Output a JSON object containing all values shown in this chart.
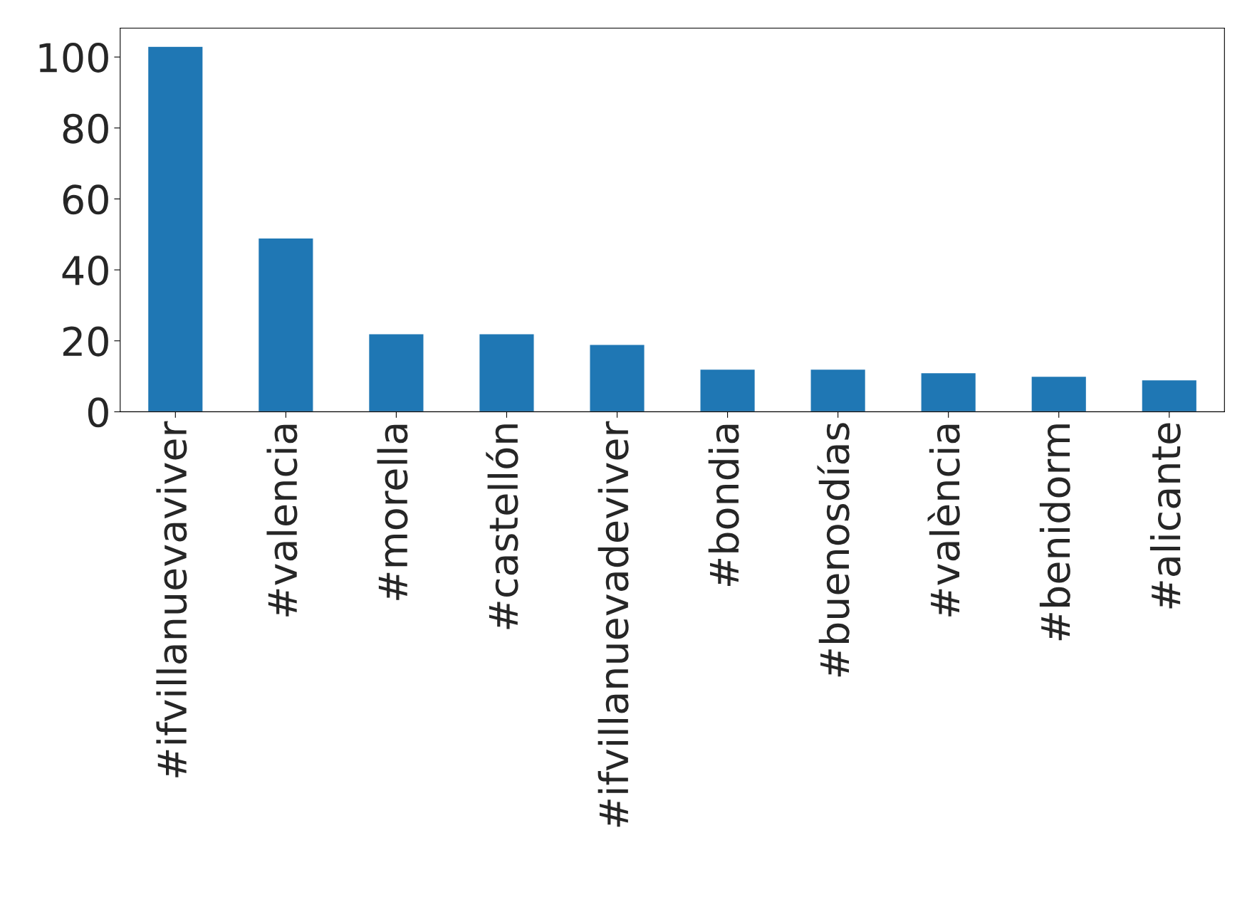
{
  "chart_data": {
    "type": "bar",
    "categories": [
      "#ifvillanuevaviver",
      "#valencia",
      "#morella",
      "#castellón",
      "#ifvillanuevadeviver",
      "#bondia",
      "#buenosdías",
      "#valència",
      "#benidorm",
      "#alicante"
    ],
    "values": [
      103,
      49,
      22,
      22,
      19,
      12,
      12,
      11,
      10,
      9
    ],
    "color": "#1f77b4",
    "ylim": [
      0,
      108.15
    ],
    "yticks": [
      0,
      20,
      40,
      60,
      80,
      100
    ],
    "grid": false
  }
}
